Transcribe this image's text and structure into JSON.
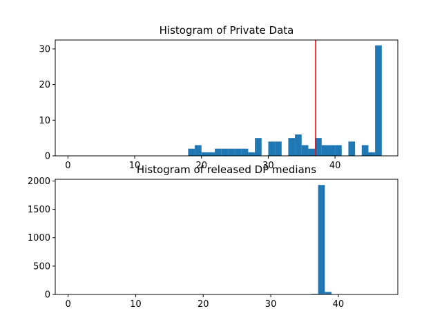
{
  "chart_data": [
    {
      "type": "bar",
      "title": "Histogram of Private Data",
      "xlabel": "",
      "ylabel": "",
      "xlim": [
        -1.9,
        49.4
      ],
      "ylim": [
        0,
        32.5
      ],
      "xticks": [
        0,
        10,
        20,
        30,
        40
      ],
      "yticks": [
        0,
        10,
        20,
        30
      ],
      "bar_color": "#1f77b4",
      "bin_width": 1,
      "bars": [
        {
          "x": 18,
          "value": 2
        },
        {
          "x": 19,
          "value": 3
        },
        {
          "x": 20,
          "value": 1
        },
        {
          "x": 21,
          "value": 1
        },
        {
          "x": 22,
          "value": 2
        },
        {
          "x": 23,
          "value": 2
        },
        {
          "x": 24,
          "value": 2
        },
        {
          "x": 25,
          "value": 2
        },
        {
          "x": 26,
          "value": 2
        },
        {
          "x": 27,
          "value": 1
        },
        {
          "x": 28,
          "value": 5
        },
        {
          "x": 30,
          "value": 4
        },
        {
          "x": 31,
          "value": 4
        },
        {
          "x": 33,
          "value": 5
        },
        {
          "x": 34,
          "value": 6
        },
        {
          "x": 35,
          "value": 3
        },
        {
          "x": 36,
          "value": 2
        },
        {
          "x": 37,
          "value": 5
        },
        {
          "x": 38,
          "value": 3
        },
        {
          "x": 39,
          "value": 3
        },
        {
          "x": 40,
          "value": 3
        },
        {
          "x": 42,
          "value": 4
        },
        {
          "x": 44,
          "value": 3
        },
        {
          "x": 45,
          "value": 1
        },
        {
          "x": 46,
          "value": 31
        }
      ],
      "vline": {
        "x": 37.1,
        "color": "#ff0000"
      }
    },
    {
      "type": "bar",
      "title": "Histogram of released DP medians",
      "xlabel": "",
      "ylabel": "",
      "xlim": [
        -1.9,
        48.8
      ],
      "ylim": [
        0,
        2030
      ],
      "xticks": [
        0,
        10,
        20,
        30,
        40
      ],
      "yticks": [
        0,
        500,
        1000,
        1500,
        2000
      ],
      "bar_color": "#1f77b4",
      "bin_width": 1,
      "bars": [
        {
          "x": 36,
          "value": 10
        },
        {
          "x": 37,
          "value": 1930
        },
        {
          "x": 38,
          "value": 45
        }
      ]
    }
  ]
}
